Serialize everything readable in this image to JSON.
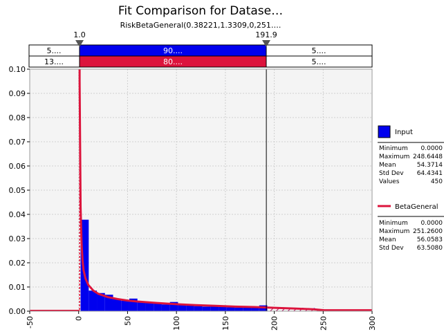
{
  "title": "Fit Comparison for Datase…",
  "subtitle": "RiskBetaGeneral(0.38221,1.3309,0,251….",
  "colors": {
    "input": "#0000ee",
    "fit": "#dc143c",
    "plot_bg": "#f4f4f4"
  },
  "markers": {
    "left": "1.0",
    "right": "191.9",
    "left_value": 1.0,
    "right_value": 191.9
  },
  "bands": {
    "input": [
      "5....",
      "90....",
      "5...."
    ],
    "fit": [
      "13....",
      "80....",
      "5...."
    ]
  },
  "chart_data": {
    "type": "bar",
    "title": "Fit Comparison for Datase…",
    "subtitle": "RiskBetaGeneral(0.38221,1.3309,0,251….",
    "xlim": [
      -50,
      300
    ],
    "ylim": [
      0,
      0.1
    ],
    "xticks": [
      "-50",
      "0",
      "50",
      "100",
      "150",
      "200",
      "250",
      "300"
    ],
    "yticks": [
      "0.00",
      "0.01",
      "0.02",
      "0.03",
      "0.04",
      "0.05",
      "0.06",
      "0.07",
      "0.08",
      "0.09",
      "0.10"
    ],
    "grid": true,
    "legend_position": "right",
    "series": [
      {
        "name": "Input",
        "kind": "histogram",
        "bin_width": 8.3,
        "bin_starts": [
          2,
          10.3,
          18.6,
          26.9,
          35.2,
          43.5,
          51.8,
          60.1,
          68.4,
          76.7,
          85,
          93.3,
          101.6,
          109.9,
          118.2,
          126.5,
          134.8,
          143.1,
          151.4,
          159.7,
          168,
          176.3,
          184.6,
          192.9,
          201.2,
          209.5,
          217.8,
          226.1,
          234.4,
          242.7
        ],
        "values": [
          0.0378,
          0.0085,
          0.0075,
          0.0068,
          0.005,
          0.0043,
          0.0052,
          0.004,
          0.0037,
          0.0032,
          0.0028,
          0.0038,
          0.0027,
          0.0027,
          0.0021,
          0.0019,
          0.0024,
          0.0018,
          0.0016,
          0.0015,
          0.0019,
          0.0016,
          0.0024,
          0.001,
          0.001,
          0.0011,
          0.001,
          0.0014,
          0.0013,
          0.0008
        ]
      },
      {
        "name": "BetaGeneral",
        "kind": "line",
        "x": [
          1,
          2,
          3,
          4,
          5,
          7,
          10,
          15,
          20,
          30,
          40,
          50,
          60,
          80,
          100,
          120,
          140,
          160,
          180,
          200,
          220,
          240,
          251,
          260,
          300
        ],
        "y": [
          0.095,
          0.043,
          0.028,
          0.021,
          0.017,
          0.0135,
          0.0108,
          0.0085,
          0.0072,
          0.0058,
          0.005,
          0.0044,
          0.004,
          0.0034,
          0.0029,
          0.0025,
          0.0022,
          0.0019,
          0.0017,
          0.0014,
          0.0011,
          0.0008,
          0.0004,
          0.0004,
          0.0004
        ]
      }
    ]
  },
  "legend": {
    "input": {
      "label": "Input",
      "stats": [
        {
          "name": "Minimum",
          "value": "0.0000"
        },
        {
          "name": "Maximum",
          "value": "248.6448"
        },
        {
          "name": "Mean",
          "value": "54.3714"
        },
        {
          "name": "Std Dev",
          "value": "64.4341"
        },
        {
          "name": "Values",
          "value": "450"
        }
      ]
    },
    "fit": {
      "label": "BetaGeneral",
      "stats": [
        {
          "name": "Minimum",
          "value": "0.0000"
        },
        {
          "name": "Maximum",
          "value": "251.2600"
        },
        {
          "name": "Mean",
          "value": "56.0583"
        },
        {
          "name": "Std Dev",
          "value": "63.5080"
        }
      ]
    }
  }
}
